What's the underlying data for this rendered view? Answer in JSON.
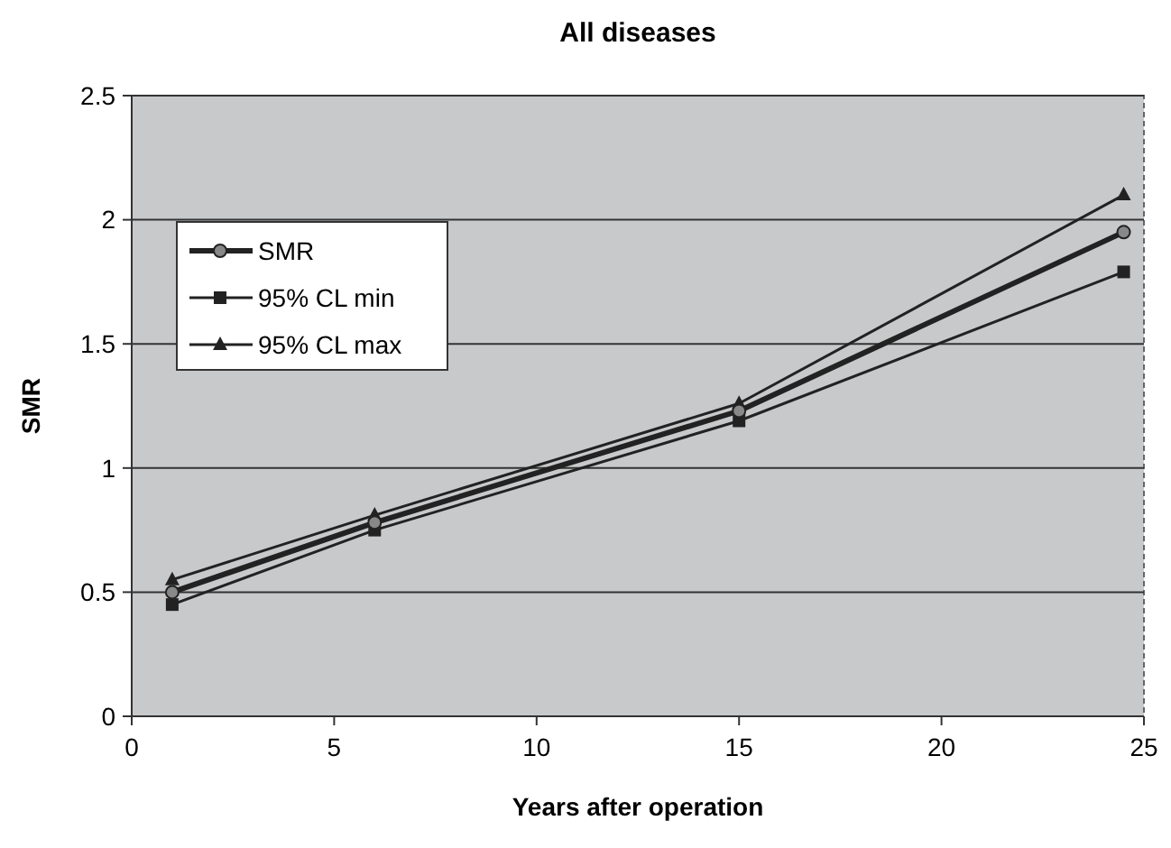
{
  "chart_data": {
    "type": "line",
    "title": "All diseases",
    "xlabel": "Years after operation",
    "ylabel": "SMR",
    "x": [
      1,
      6,
      15,
      24.5
    ],
    "series": [
      {
        "name": "SMR",
        "color": "#222222",
        "marker": "circle",
        "values": [
          0.5,
          0.78,
          1.23,
          1.95
        ]
      },
      {
        "name": "95% CL min",
        "color": "#222222",
        "marker": "square",
        "values": [
          0.45,
          0.75,
          1.19,
          1.79
        ]
      },
      {
        "name": "95% CL max",
        "color": "#222222",
        "marker": "triangle",
        "values": [
          0.55,
          0.81,
          1.26,
          2.1
        ]
      }
    ],
    "xlim": [
      0,
      25
    ],
    "xticks": [
      0,
      5,
      10,
      15,
      20,
      25
    ],
    "ylim": [
      0,
      2.5
    ],
    "yticks": [
      0,
      0.5,
      1,
      1.5,
      2,
      2.5
    ],
    "grid": "y",
    "legend": "top left",
    "line_style": "solid"
  }
}
